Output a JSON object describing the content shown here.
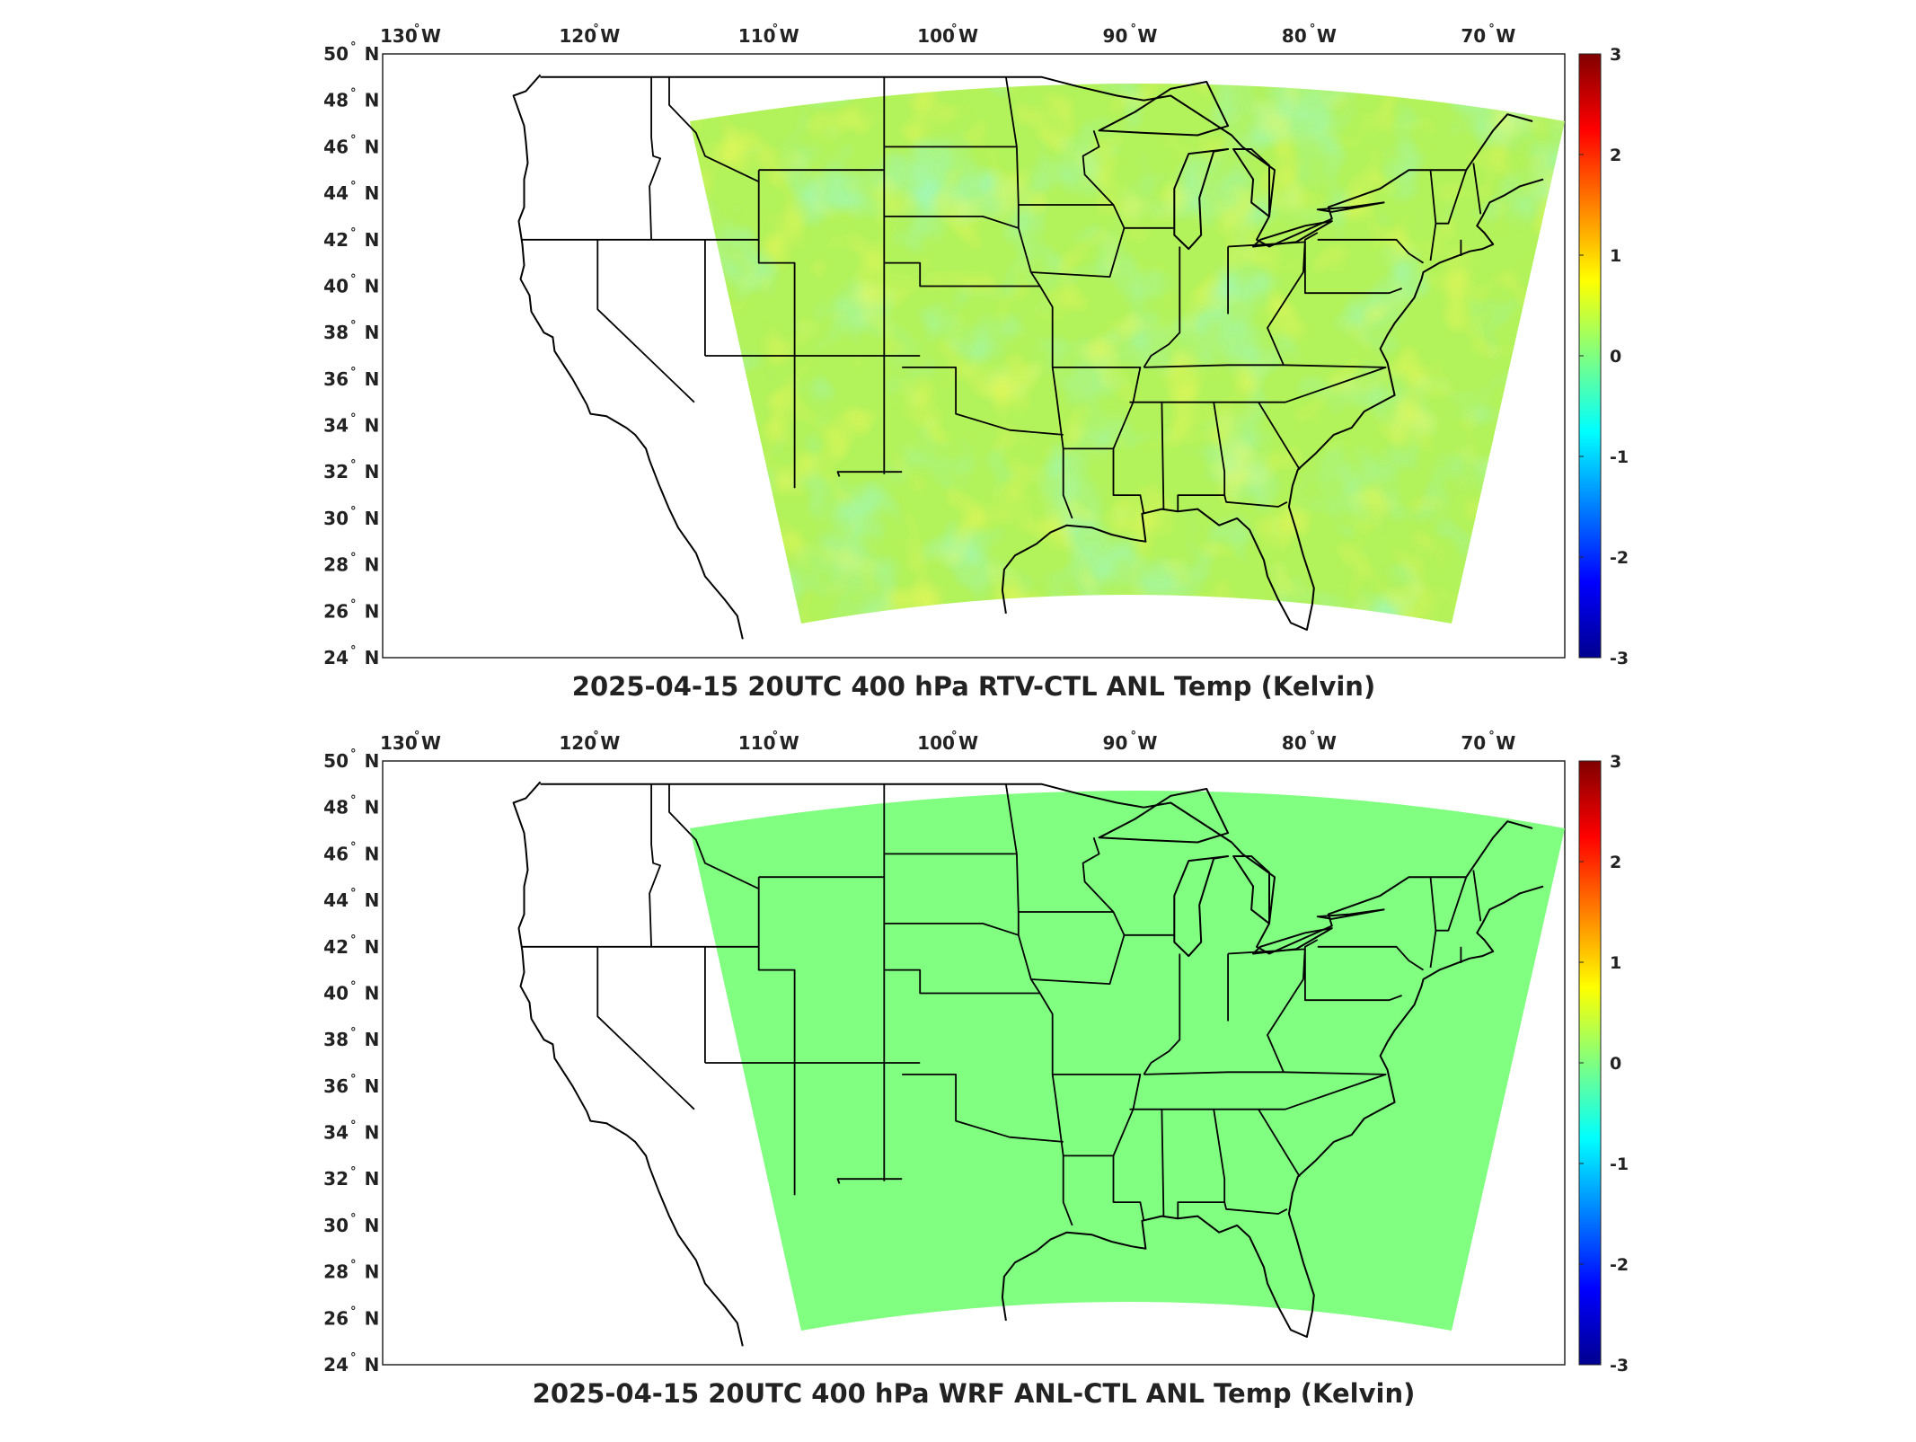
{
  "panels": [
    {
      "title": "2025-04-15 20UTC 400 hPa RTV-CTL ANL Temp (Kelvin)",
      "field": "noisy",
      "base_color": "#b2f25a",
      "cmap": "jet",
      "clim": [
        -3,
        3
      ],
      "colorbar_ticks": [
        "3",
        "2",
        "1",
        "0",
        "-1",
        "-2",
        "-3"
      ]
    },
    {
      "title": "2025-04-15 20UTC 400 hPa WRF ANL-CTL ANL Temp (Kelvin)",
      "field": "uniform",
      "base_color": "#80ff80",
      "cmap": "jet",
      "clim": [
        -3,
        3
      ],
      "colorbar_ticks": [
        "3",
        "2",
        "1",
        "0",
        "-1",
        "-2",
        "-3"
      ]
    }
  ],
  "lon_ticks": [
    "130",
    "120",
    "110",
    "100",
    "90",
    "80",
    "70"
  ],
  "lon_hemi": "W",
  "lat_ticks": [
    "50",
    "48",
    "46",
    "44",
    "42",
    "40",
    "38",
    "36",
    "34",
    "32",
    "30",
    "28",
    "26",
    "24"
  ],
  "lat_hemi": "N",
  "degree_symbol": "°",
  "map": {
    "lon_range": [
      -132,
      -66
    ],
    "lat_range": [
      24,
      50
    ],
    "projection": "equirectangular",
    "domain": "CONUS regional model domain",
    "layers": [
      "coastlines",
      "us-state-boundaries"
    ]
  }
}
